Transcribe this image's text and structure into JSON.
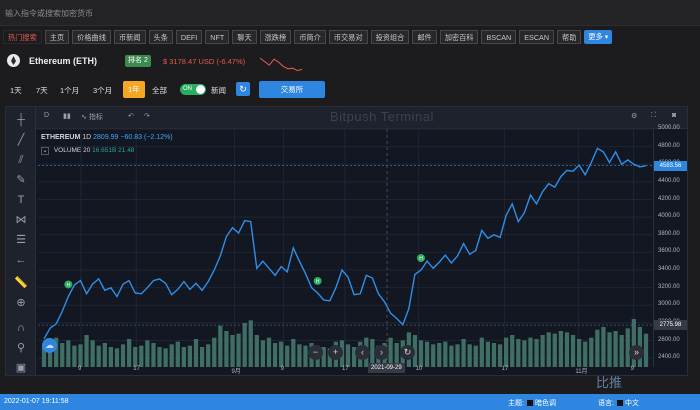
{
  "search": {
    "placeholder": "输入指令或搜索加密货币"
  },
  "nav": {
    "items": [
      "热门搜索",
      "主页",
      "价格曲线",
      "币新闻",
      "头条",
      "DEFI",
      "NFT",
      "聊天",
      "涨跌榜",
      "币简介",
      "币交易对",
      "投资组合",
      "邮件",
      "加密百科",
      "BSCAN",
      "ESCAN",
      "帮助"
    ],
    "more": "更多"
  },
  "coin": {
    "name": "Ethereum (ETH)",
    "rank": "排名 2",
    "price": "$ 3178.47 USD (-6.47%)",
    "sparkline": [
      20,
      32,
      44,
      24,
      34,
      48,
      56,
      54,
      62,
      58
    ]
  },
  "ranges": {
    "items": [
      "1天",
      "7天",
      "1个月",
      "3个月",
      "1年",
      "全部"
    ],
    "active": "1年"
  },
  "toggle": {
    "state": "ON"
  },
  "news_label": "新闻",
  "exchange_button": "交易所",
  "chart_toolbar": {
    "interval": "D",
    "indicators": "指标",
    "title": "Bitpush Terminal"
  },
  "chart_legend": {
    "symbol": "ETHEREUM",
    "interval": "1D",
    "value": "2809.99",
    "change": "−60.83 (−2.12%)",
    "volume_label": "VOLUME",
    "volume_len": "20",
    "volume_value": "16.651B",
    "volume_ma": "21.48"
  },
  "chart_data": {
    "type": "line",
    "title": "ETHEREUM 1D",
    "ylim": [
      2300,
      5000
    ],
    "y_ticks": [
      2400,
      2600,
      2800,
      3000,
      3200,
      3400,
      3600,
      3800,
      4000,
      4200,
      4400,
      4600,
      4800,
      5000
    ],
    "x_tick_labels": [
      "9",
      "17",
      "9月",
      "9",
      "17",
      "10",
      "17",
      "11月",
      "9"
    ],
    "series": [
      {
        "values": [
          2620,
          2740,
          2790,
          2930,
          3100,
          3230,
          3280,
          3130,
          3240,
          3300,
          3170,
          3200,
          3100,
          3240,
          3280,
          3140,
          3130,
          3200,
          3280,
          3300,
          3250,
          3120,
          3180,
          3270,
          3180,
          3250,
          3170,
          3270,
          3400,
          3560,
          3780,
          3880,
          3820,
          3960,
          3950,
          3420,
          3500,
          3420,
          3340,
          3440,
          3380,
          3650,
          3500,
          3360,
          3200,
          3140,
          3060,
          3050,
          3200,
          3400,
          3320,
          3120,
          3130,
          3340,
          3310,
          3130,
          3040,
          2910,
          2850,
          2780,
          2960,
          3350,
          3400,
          3500,
          3420,
          3490,
          3570,
          3480,
          3560,
          3700,
          3580,
          3620,
          3850,
          3760,
          3800,
          3770,
          4020,
          4150,
          3950,
          4050,
          4250,
          4150,
          4290,
          4380,
          4340,
          4460,
          4530,
          4520,
          4590,
          4480,
          4620,
          4780,
          4740,
          4620,
          4740,
          4600,
          4650,
          4600,
          4570,
          4583.56
        ]
      },
      {
        "values": [
          15,
          14,
          22,
          18,
          20,
          16,
          17,
          24,
          20,
          16,
          18,
          15,
          14,
          17,
          21,
          15,
          16,
          20,
          18,
          15,
          14,
          17,
          19,
          15,
          16,
          21,
          15,
          17,
          22,
          31,
          27,
          24,
          25,
          33,
          35,
          24,
          20,
          22,
          18,
          19,
          16,
          21,
          17,
          16,
          18,
          16,
          15,
          14,
          19,
          20,
          17,
          15,
          19,
          22,
          21,
          16,
          18,
          22,
          18,
          20,
          26,
          24,
          20,
          19,
          17,
          18,
          19,
          16,
          17,
          21,
          17,
          16,
          22,
          19,
          18,
          17,
          22,
          24,
          21,
          20,
          22,
          21,
          24,
          26,
          25,
          27,
          26,
          24,
          21,
          19,
          22,
          28,
          30,
          26,
          27,
          24,
          29,
          36,
          30,
          25
        ]
      }
    ],
    "last_price": "4583.56",
    "marker_price": "2775.98",
    "crosshair_date": "2021-09-29",
    "grid": true
  },
  "colors": {
    "accent": "#2f86e0",
    "line": "#2f8ee8",
    "volume": "#3f6f64",
    "loss": "#e25a4f",
    "rank": "#3b8a4e",
    "range_active": "#f5a623"
  },
  "status": {
    "datetime": "2022-01-07 19:11:58",
    "theme_label": "主题:",
    "theme_value": "暗色调",
    "lang_label": "语言:",
    "lang_value": "中文"
  },
  "watermark": "比推"
}
